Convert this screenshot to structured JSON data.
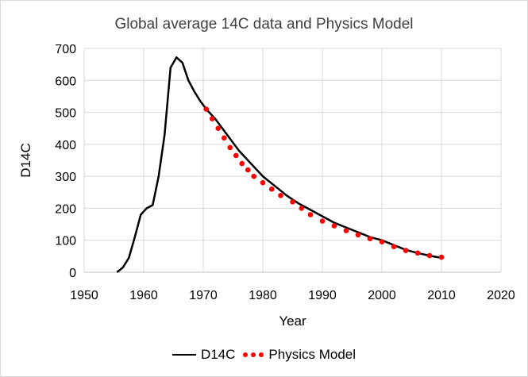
{
  "chart_data": {
    "type": "line",
    "title": "Global average 14C data and Physics Model",
    "xlabel": "Year",
    "ylabel": "D14C",
    "xlim": [
      1950,
      2020
    ],
    "ylim": [
      0,
      700
    ],
    "x_ticks": [
      1950,
      1960,
      1970,
      1980,
      1990,
      2000,
      2010,
      2020
    ],
    "y_ticks": [
      0,
      100,
      200,
      300,
      400,
      500,
      600,
      700
    ],
    "grid": true,
    "legend_position": "bottom",
    "series": [
      {
        "name": "D14C",
        "style": "solid-line",
        "color": "#000000",
        "x": [
          1955.5,
          1956.5,
          1957.5,
          1958.5,
          1959.5,
          1960.5,
          1961.5,
          1962.5,
          1963.5,
          1964.5,
          1965.5,
          1966.5,
          1967.5,
          1968.5,
          1969.5,
          1970.5,
          1972,
          1974,
          1976,
          1978,
          1980,
          1982,
          1984,
          1986,
          1988,
          1990,
          1992,
          1994,
          1996,
          1998,
          2000,
          2002,
          2004,
          2006,
          2008,
          2010
        ],
        "y": [
          0,
          15,
          45,
          110,
          180,
          200,
          210,
          300,
          430,
          640,
          672,
          655,
          600,
          565,
          535,
          510,
          480,
          430,
          380,
          340,
          300,
          270,
          240,
          215,
          195,
          175,
          155,
          140,
          125,
          110,
          100,
          85,
          70,
          60,
          52,
          45
        ]
      },
      {
        "name": "Physics Model",
        "style": "dotted",
        "color": "#ff0000",
        "x": [
          1970.5,
          1971.5,
          1972.5,
          1973.5,
          1974.5,
          1975.5,
          1976.5,
          1977.5,
          1978.5,
          1980,
          1981.5,
          1983,
          1985,
          1986.5,
          1988,
          1990,
          1992,
          1994,
          1996,
          1998,
          2000,
          2002,
          2004,
          2006,
          2008,
          2010
        ],
        "y": [
          510,
          480,
          450,
          420,
          390,
          365,
          340,
          320,
          300,
          280,
          260,
          240,
          220,
          200,
          180,
          160,
          145,
          130,
          117,
          105,
          95,
          80,
          68,
          60,
          52,
          47
        ]
      }
    ]
  }
}
